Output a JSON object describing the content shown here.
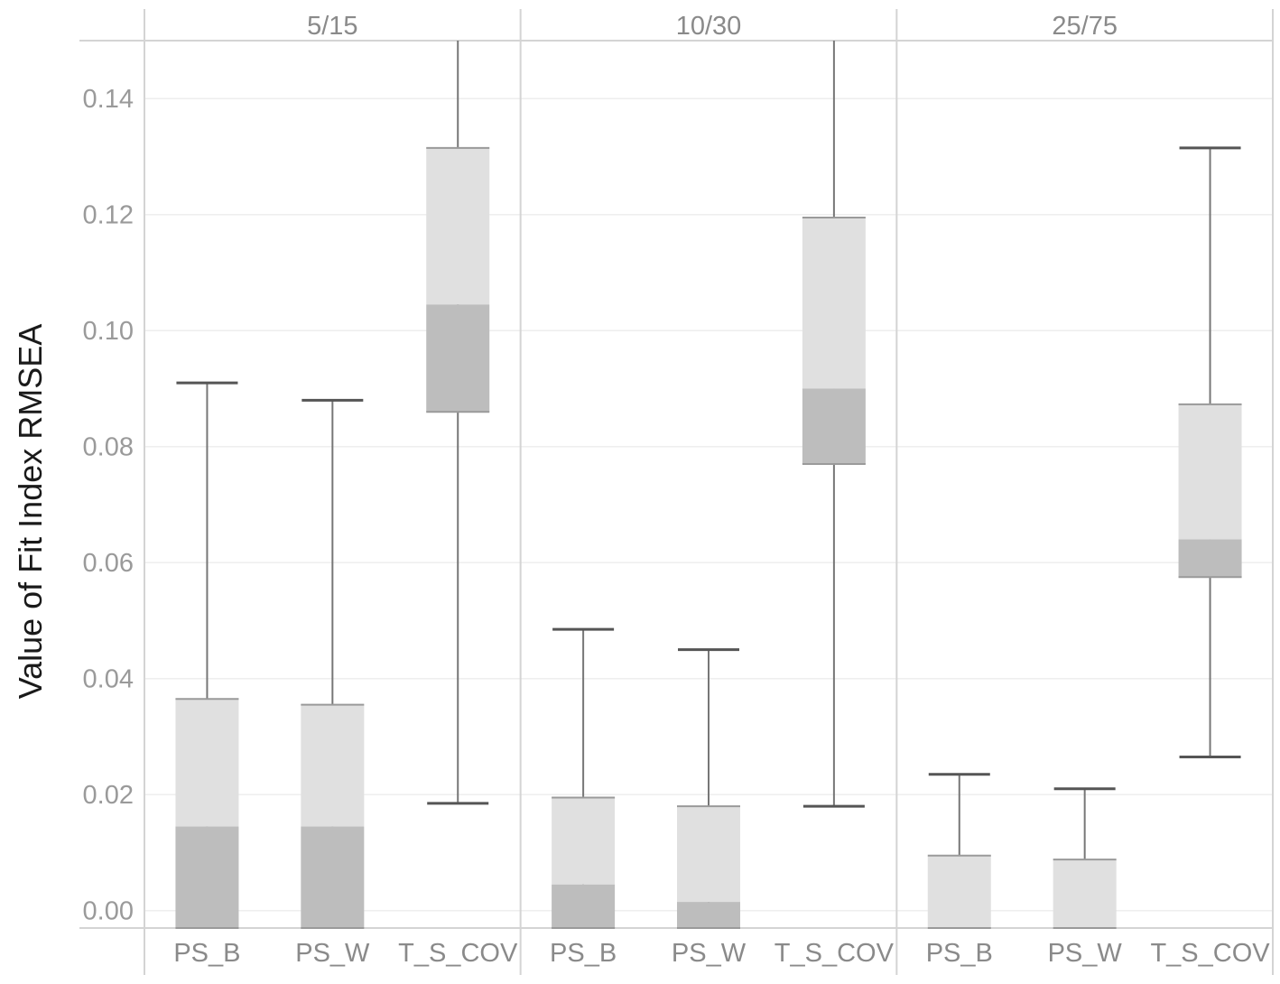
{
  "chart_data": {
    "type": "boxplot",
    "ylabel": "Value of Fit Index RMSEA",
    "ylim": [
      -0.003,
      0.15
    ],
    "y_ticks": [
      0.0,
      0.02,
      0.04,
      0.06,
      0.08,
      0.1,
      0.12,
      0.14
    ],
    "y_tick_labels": [
      "0.00",
      "0.02",
      "0.04",
      "0.06",
      "0.08",
      "0.10",
      "0.12",
      "0.14"
    ],
    "grid": true,
    "colors": {
      "upper_box": "#e0e0e0",
      "lower_box": "#bdbdbd",
      "whisker": "#777777",
      "grid": "#eeeeee",
      "divider": "#d4d4d4"
    },
    "panels": [
      {
        "label": "5/15",
        "boxes": [
          {
            "category": "PS_B",
            "min": -0.003,
            "q1": -0.003,
            "median": 0.0145,
            "q3": 0.0365,
            "max": 0.091
          },
          {
            "category": "PS_W",
            "min": -0.003,
            "q1": -0.003,
            "median": 0.0145,
            "q3": 0.0355,
            "max": 0.088
          },
          {
            "category": "T_S_COV",
            "min": 0.0185,
            "q1": 0.086,
            "median": 0.1045,
            "q3": 0.1315,
            "max": 0.15
          }
        ]
      },
      {
        "label": "10/30",
        "boxes": [
          {
            "category": "PS_B",
            "min": -0.003,
            "q1": -0.003,
            "median": 0.0045,
            "q3": 0.0195,
            "max": 0.0485
          },
          {
            "category": "PS_W",
            "min": -0.003,
            "q1": -0.003,
            "median": 0.0015,
            "q3": 0.018,
            "max": 0.045
          },
          {
            "category": "T_S_COV",
            "min": 0.018,
            "q1": 0.077,
            "median": 0.09,
            "q3": 0.1195,
            "max": 0.15
          }
        ]
      },
      {
        "label": "25/75",
        "boxes": [
          {
            "category": "PS_B",
            "min": -0.003,
            "q1": -0.003,
            "median": -0.003,
            "q3": 0.0095,
            "max": 0.0235
          },
          {
            "category": "PS_W",
            "min": -0.003,
            "q1": -0.003,
            "median": -0.003,
            "q3": 0.0088,
            "max": 0.021
          },
          {
            "category": "T_S_COV",
            "min": 0.0265,
            "q1": 0.0575,
            "median": 0.064,
            "q3": 0.0873,
            "max": 0.1315
          }
        ]
      }
    ]
  }
}
